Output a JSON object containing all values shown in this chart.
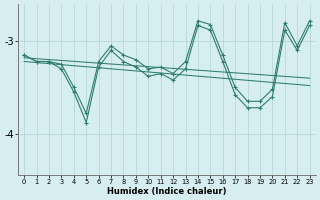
{
  "x": [
    0,
    1,
    2,
    3,
    4,
    5,
    6,
    7,
    8,
    9,
    10,
    11,
    12,
    13,
    14,
    15,
    16,
    17,
    18,
    19,
    20,
    21,
    22,
    23
  ],
  "ya": [
    -3.15,
    -3.22,
    -3.22,
    -3.3,
    -3.55,
    -3.88,
    -3.28,
    -3.1,
    -3.22,
    -3.28,
    -3.38,
    -3.35,
    -3.42,
    -3.3,
    -2.83,
    -2.88,
    -3.22,
    -3.58,
    -3.72,
    -3.72,
    -3.6,
    -2.88,
    -3.1,
    -2.83
  ],
  "yb": [
    -3.15,
    -3.22,
    -3.22,
    -3.25,
    -3.5,
    -3.78,
    -3.22,
    -3.05,
    -3.15,
    -3.2,
    -3.3,
    -3.28,
    -3.35,
    -3.22,
    -2.78,
    -2.82,
    -3.15,
    -3.5,
    -3.65,
    -3.65,
    -3.52,
    -2.8,
    -3.05,
    -2.78
  ],
  "trend1_x": [
    0,
    23
  ],
  "trend1_y": [
    -3.18,
    -3.4
  ],
  "trend2_x": [
    0,
    23
  ],
  "trend2_y": [
    -3.22,
    -3.48
  ],
  "line_color": "#2e7d6e",
  "bg_color": "#d6eef0",
  "grid_color": "#b0d4d8",
  "yticks": [
    -4,
    -3
  ],
  "xlabel": "Humidex (Indice chaleur)",
  "ylim": [
    -4.45,
    -2.6
  ],
  "xlim": [
    -0.5,
    23.5
  ]
}
